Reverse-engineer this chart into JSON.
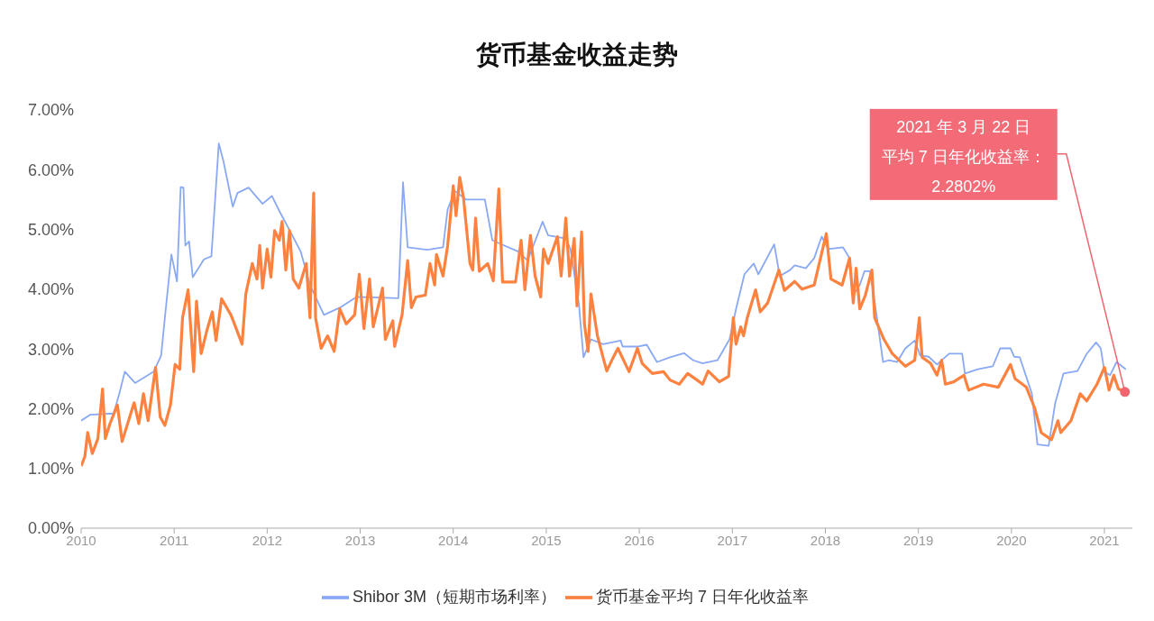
{
  "chart_data": {
    "type": "line",
    "title": "货币基金收益走势",
    "xlim": [
      2010,
      2021.3
    ],
    "xticks": [
      2010,
      2011,
      2012,
      2013,
      2014,
      2015,
      2016,
      2017,
      2018,
      2019,
      2020,
      2021
    ],
    "ylim": [
      0,
      7
    ],
    "yticks": [
      {
        "value": 0,
        "label": "0.00%"
      },
      {
        "value": 1,
        "label": "1.00%"
      },
      {
        "value": 2,
        "label": "2.00%"
      },
      {
        "value": 3,
        "label": "3.00%"
      },
      {
        "value": 4,
        "label": "4.00%"
      },
      {
        "value": 5,
        "label": "5.00%"
      },
      {
        "value": 6,
        "label": "6.00%"
      },
      {
        "value": 7,
        "label": "7.00%"
      }
    ],
    "grid": false,
    "legend": "bottom",
    "marker": "none",
    "line_style": "solid",
    "annotations": [
      "2021 年 3 月 22 日",
      {
        "text": "平均 7 日年化收益率：",
        "x": 2021.22,
        "y": 2.2802
      },
      "2.2802%"
    ],
    "series": [
      {
        "name": "Shibor 3M（短期市场利率）",
        "color": "#8aa9f5",
        "x": [
          2010.0,
          2010.1,
          2010.35,
          2010.41,
          2010.47,
          2010.58,
          2010.78,
          2010.86,
          2010.9,
          2010.97,
          2011.03,
          2011.07,
          2011.1,
          2011.12,
          2011.16,
          2011.2,
          2011.32,
          2011.4,
          2011.48,
          2011.53,
          2011.63,
          2011.68,
          2011.8,
          2011.95,
          2012.05,
          2012.14,
          2012.26,
          2012.36,
          2012.46,
          2012.55,
          2012.61,
          2012.78,
          2012.96,
          2013.41,
          2013.46,
          2013.51,
          2013.72,
          2013.89,
          2013.94,
          2014.02,
          2014.14,
          2014.34,
          2014.42,
          2014.55,
          2014.7,
          2014.8,
          2014.96,
          2015.02,
          2015.21,
          2015.26,
          2015.35,
          2015.4,
          2015.48,
          2015.61,
          2015.8,
          2015.82,
          2015.99,
          2016.08,
          2016.19,
          2016.33,
          2016.48,
          2016.58,
          2016.68,
          2016.84,
          2016.97,
          2017.04,
          2017.13,
          2017.23,
          2017.28,
          2017.45,
          2017.51,
          2017.62,
          2017.67,
          2017.79,
          2017.88,
          2017.96,
          2018.03,
          2018.19,
          2018.26,
          2018.3,
          2018.37,
          2018.42,
          2018.48,
          2018.55,
          2018.62,
          2018.68,
          2018.77,
          2018.86,
          2018.96,
          2019.02,
          2019.11,
          2019.2,
          2019.33,
          2019.47,
          2019.5,
          2019.64,
          2019.8,
          2019.88,
          2019.99,
          2020.03,
          2020.09,
          2020.22,
          2020.28,
          2020.4,
          2020.47,
          2020.56,
          2020.71,
          2020.81,
          2020.91,
          2020.96,
          2021.0,
          2021.06,
          2021.13,
          2021.23
        ],
        "values": [
          1.8,
          1.9,
          1.92,
          2.25,
          2.62,
          2.43,
          2.62,
          2.89,
          3.52,
          4.58,
          4.13,
          5.71,
          5.7,
          4.73,
          4.8,
          4.2,
          4.5,
          4.55,
          6.44,
          6.14,
          5.38,
          5.61,
          5.7,
          5.43,
          5.56,
          5.28,
          4.93,
          4.63,
          4.07,
          3.77,
          3.57,
          3.69,
          3.87,
          3.85,
          5.79,
          4.7,
          4.66,
          4.7,
          5.34,
          5.64,
          5.5,
          5.5,
          4.82,
          4.73,
          4.63,
          4.48,
          5.13,
          4.9,
          4.85,
          4.67,
          3.76,
          2.86,
          3.16,
          3.08,
          3.14,
          3.04,
          3.04,
          3.07,
          2.78,
          2.86,
          2.93,
          2.81,
          2.76,
          2.81,
          3.16,
          3.67,
          4.25,
          4.43,
          4.25,
          4.75,
          4.22,
          4.32,
          4.4,
          4.35,
          4.52,
          4.88,
          4.67,
          4.7,
          4.52,
          3.9,
          4.07,
          4.3,
          4.3,
          3.57,
          2.78,
          2.81,
          2.78,
          3.01,
          3.14,
          2.89,
          2.87,
          2.74,
          2.92,
          2.92,
          2.59,
          2.66,
          2.71,
          3.01,
          3.01,
          2.87,
          2.86,
          2.25,
          1.4,
          1.38,
          2.09,
          2.59,
          2.63,
          2.92,
          3.11,
          3.01,
          2.62,
          2.56,
          2.78,
          2.66
        ]
      },
      {
        "name": "货币基金平均 7 日年化收益率",
        "color": "#fd8240",
        "x": [
          2010.0,
          2010.04,
          2010.07,
          2010.12,
          2010.18,
          2010.23,
          2010.26,
          2010.31,
          2010.39,
          2010.44,
          2010.57,
          2010.62,
          2010.67,
          2010.72,
          2010.8,
          2010.85,
          2010.9,
          2010.96,
          2011.01,
          2011.06,
          2011.09,
          2011.15,
          2011.21,
          2011.24,
          2011.29,
          2011.35,
          2011.41,
          2011.45,
          2011.51,
          2011.61,
          2011.66,
          2011.73,
          2011.77,
          2011.84,
          2011.89,
          2011.92,
          2011.95,
          2012.0,
          2012.04,
          2012.08,
          2012.13,
          2012.16,
          2012.2,
          2012.24,
          2012.28,
          2012.34,
          2012.42,
          2012.46,
          2012.5,
          2012.52,
          2012.58,
          2012.65,
          2012.72,
          2012.78,
          2012.85,
          2012.94,
          2012.99,
          2013.04,
          2013.1,
          2013.14,
          2013.24,
          2013.27,
          2013.35,
          2013.37,
          2013.45,
          2013.51,
          2013.55,
          2013.6,
          2013.7,
          2013.75,
          2013.8,
          2013.82,
          2013.89,
          2013.94,
          2014.0,
          2014.03,
          2014.07,
          2014.11,
          2014.18,
          2014.21,
          2014.24,
          2014.28,
          2014.37,
          2014.43,
          2014.49,
          2014.53,
          2014.67,
          2014.73,
          2014.77,
          2014.83,
          2014.88,
          2014.94,
          2014.97,
          2015.02,
          2015.12,
          2015.16,
          2015.21,
          2015.25,
          2015.3,
          2015.33,
          2015.38,
          2015.41,
          2015.45,
          2015.48,
          2015.55,
          2015.61,
          2015.65,
          2015.72,
          2015.77,
          2015.89,
          2015.98,
          2016.03,
          2016.14,
          2016.26,
          2016.33,
          2016.43,
          2016.52,
          2016.62,
          2016.68,
          2016.74,
          2016.86,
          2016.96,
          2017.01,
          2017.04,
          2017.09,
          2017.12,
          2017.16,
          2017.25,
          2017.3,
          2017.38,
          2017.5,
          2017.56,
          2017.67,
          2017.75,
          2017.88,
          2018.01,
          2018.06,
          2018.18,
          2018.26,
          2018.3,
          2018.33,
          2018.37,
          2018.43,
          2018.5,
          2018.53,
          2018.63,
          2018.72,
          2018.86,
          2018.96,
          2019.01,
          2019.04,
          2019.13,
          2019.2,
          2019.25,
          2019.29,
          2019.38,
          2019.49,
          2019.54,
          2019.7,
          2019.86,
          2019.99,
          2020.04,
          2020.16,
          2020.25,
          2020.32,
          2020.43,
          2020.5,
          2020.53,
          2020.64,
          2020.74,
          2020.81,
          2020.92,
          2021.0,
          2021.05,
          2021.1,
          2021.15,
          2021.22
        ],
        "values": [
          1.04,
          1.2,
          1.6,
          1.25,
          1.5,
          2.33,
          1.5,
          1.75,
          2.06,
          1.45,
          2.1,
          1.75,
          2.25,
          1.8,
          2.69,
          1.86,
          1.72,
          2.06,
          2.74,
          2.66,
          3.52,
          3.99,
          2.62,
          3.8,
          2.92,
          3.3,
          3.62,
          3.14,
          3.84,
          3.57,
          3.37,
          3.08,
          3.92,
          4.43,
          4.17,
          4.73,
          4.02,
          4.67,
          4.2,
          4.98,
          4.82,
          5.13,
          4.32,
          4.98,
          4.17,
          4.02,
          4.43,
          3.52,
          5.61,
          3.52,
          3.01,
          3.22,
          2.96,
          3.67,
          3.42,
          3.57,
          4.25,
          3.34,
          4.17,
          3.37,
          4.02,
          3.16,
          3.47,
          3.04,
          3.57,
          4.48,
          3.69,
          3.87,
          3.9,
          4.43,
          4.07,
          4.58,
          4.22,
          4.73,
          5.73,
          5.23,
          5.87,
          5.53,
          4.43,
          4.32,
          5.19,
          4.3,
          4.43,
          4.14,
          5.68,
          4.12,
          4.12,
          4.82,
          3.99,
          4.9,
          4.22,
          3.87,
          4.67,
          4.43,
          4.88,
          4.22,
          5.19,
          4.22,
          4.85,
          3.72,
          4.96,
          3.42,
          2.96,
          3.92,
          3.22,
          2.86,
          2.63,
          2.86,
          3.01,
          2.62,
          3.01,
          2.76,
          2.59,
          2.62,
          2.48,
          2.41,
          2.59,
          2.48,
          2.41,
          2.63,
          2.45,
          2.54,
          3.52,
          3.08,
          3.37,
          3.22,
          3.52,
          3.99,
          3.62,
          3.77,
          4.32,
          3.98,
          4.13,
          4.0,
          4.07,
          4.93,
          4.17,
          4.07,
          4.52,
          3.77,
          4.35,
          3.67,
          3.9,
          4.32,
          3.52,
          3.16,
          2.92,
          2.71,
          2.81,
          3.52,
          2.86,
          2.76,
          2.56,
          2.81,
          2.41,
          2.45,
          2.56,
          2.31,
          2.41,
          2.36,
          2.74,
          2.5,
          2.36,
          2.01,
          1.6,
          1.48,
          1.8,
          1.6,
          1.8,
          2.25,
          2.13,
          2.41,
          2.69,
          2.31,
          2.56,
          2.33,
          2.28
        ]
      }
    ]
  }
}
